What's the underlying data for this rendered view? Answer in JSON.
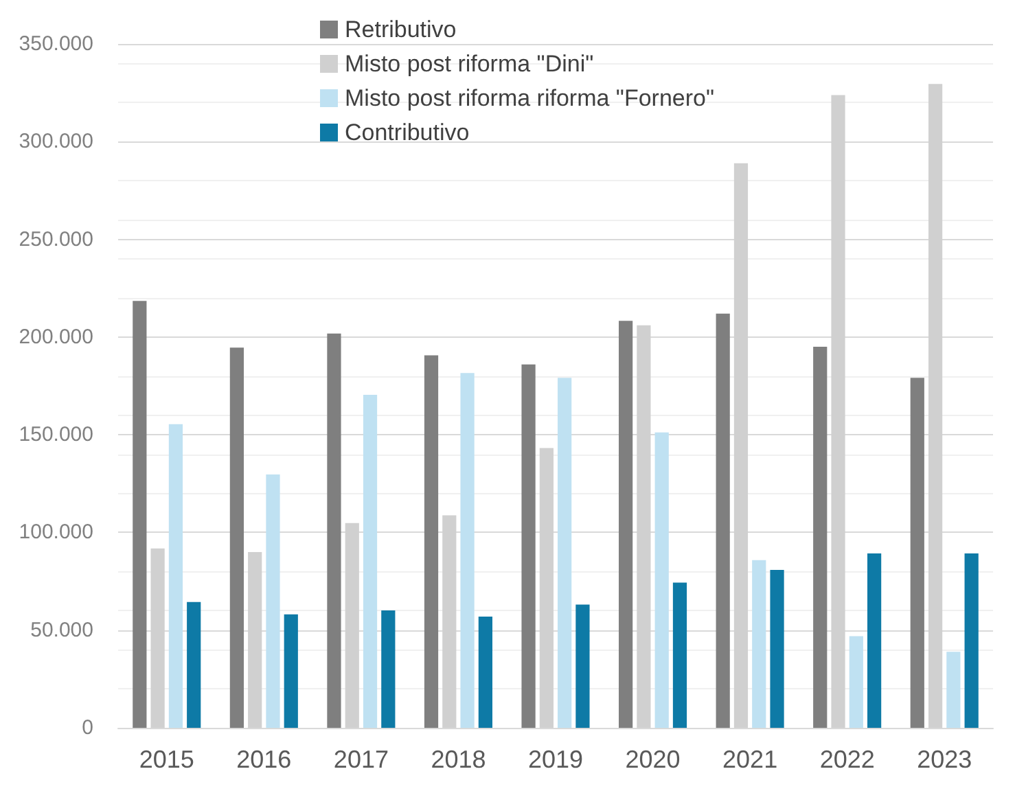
{
  "chart_data": {
    "type": "bar",
    "categories": [
      "2015",
      "2016",
      "2017",
      "2018",
      "2019",
      "2020",
      "2021",
      "2022",
      "2023"
    ],
    "series": [
      {
        "name": "Retributivo",
        "color": "#7f7f7f",
        "values": [
          218500,
          194600,
          201800,
          190600,
          186000,
          208300,
          212000,
          195000,
          179100
        ]
      },
      {
        "name": "Misto post riforma \"Dini\"",
        "color": "#d0d0d0",
        "values": [
          91800,
          90000,
          104800,
          108800,
          143200,
          206000,
          288900,
          323800,
          329500
        ]
      },
      {
        "name": "Misto post riforma riforma \"Fornero\"",
        "color": "#bfe1f2",
        "values": [
          155400,
          129700,
          170400,
          181600,
          179100,
          151200,
          85800,
          46900,
          38900
        ]
      },
      {
        "name": "Contributivo",
        "color": "#0e7aa6",
        "values": [
          64400,
          58100,
          60100,
          56900,
          63100,
          74300,
          80800,
          89300,
          89300
        ]
      }
    ],
    "ylim": [
      0,
      350000
    ],
    "yticks": [
      0,
      {
        "value": 50000,
        "label": "50.000"
      },
      {
        "value": 100000,
        "label": "100.000"
      },
      {
        "value": 150000,
        "label": "150.000"
      },
      {
        "value": 200000,
        "label": "200.000"
      },
      {
        "value": 250000,
        "label": "250.000"
      },
      {
        "value": 300000,
        "label": "300.000"
      },
      {
        "value": 350000,
        "label": "350.000"
      }
    ],
    "grid": "y",
    "legend": "top"
  }
}
